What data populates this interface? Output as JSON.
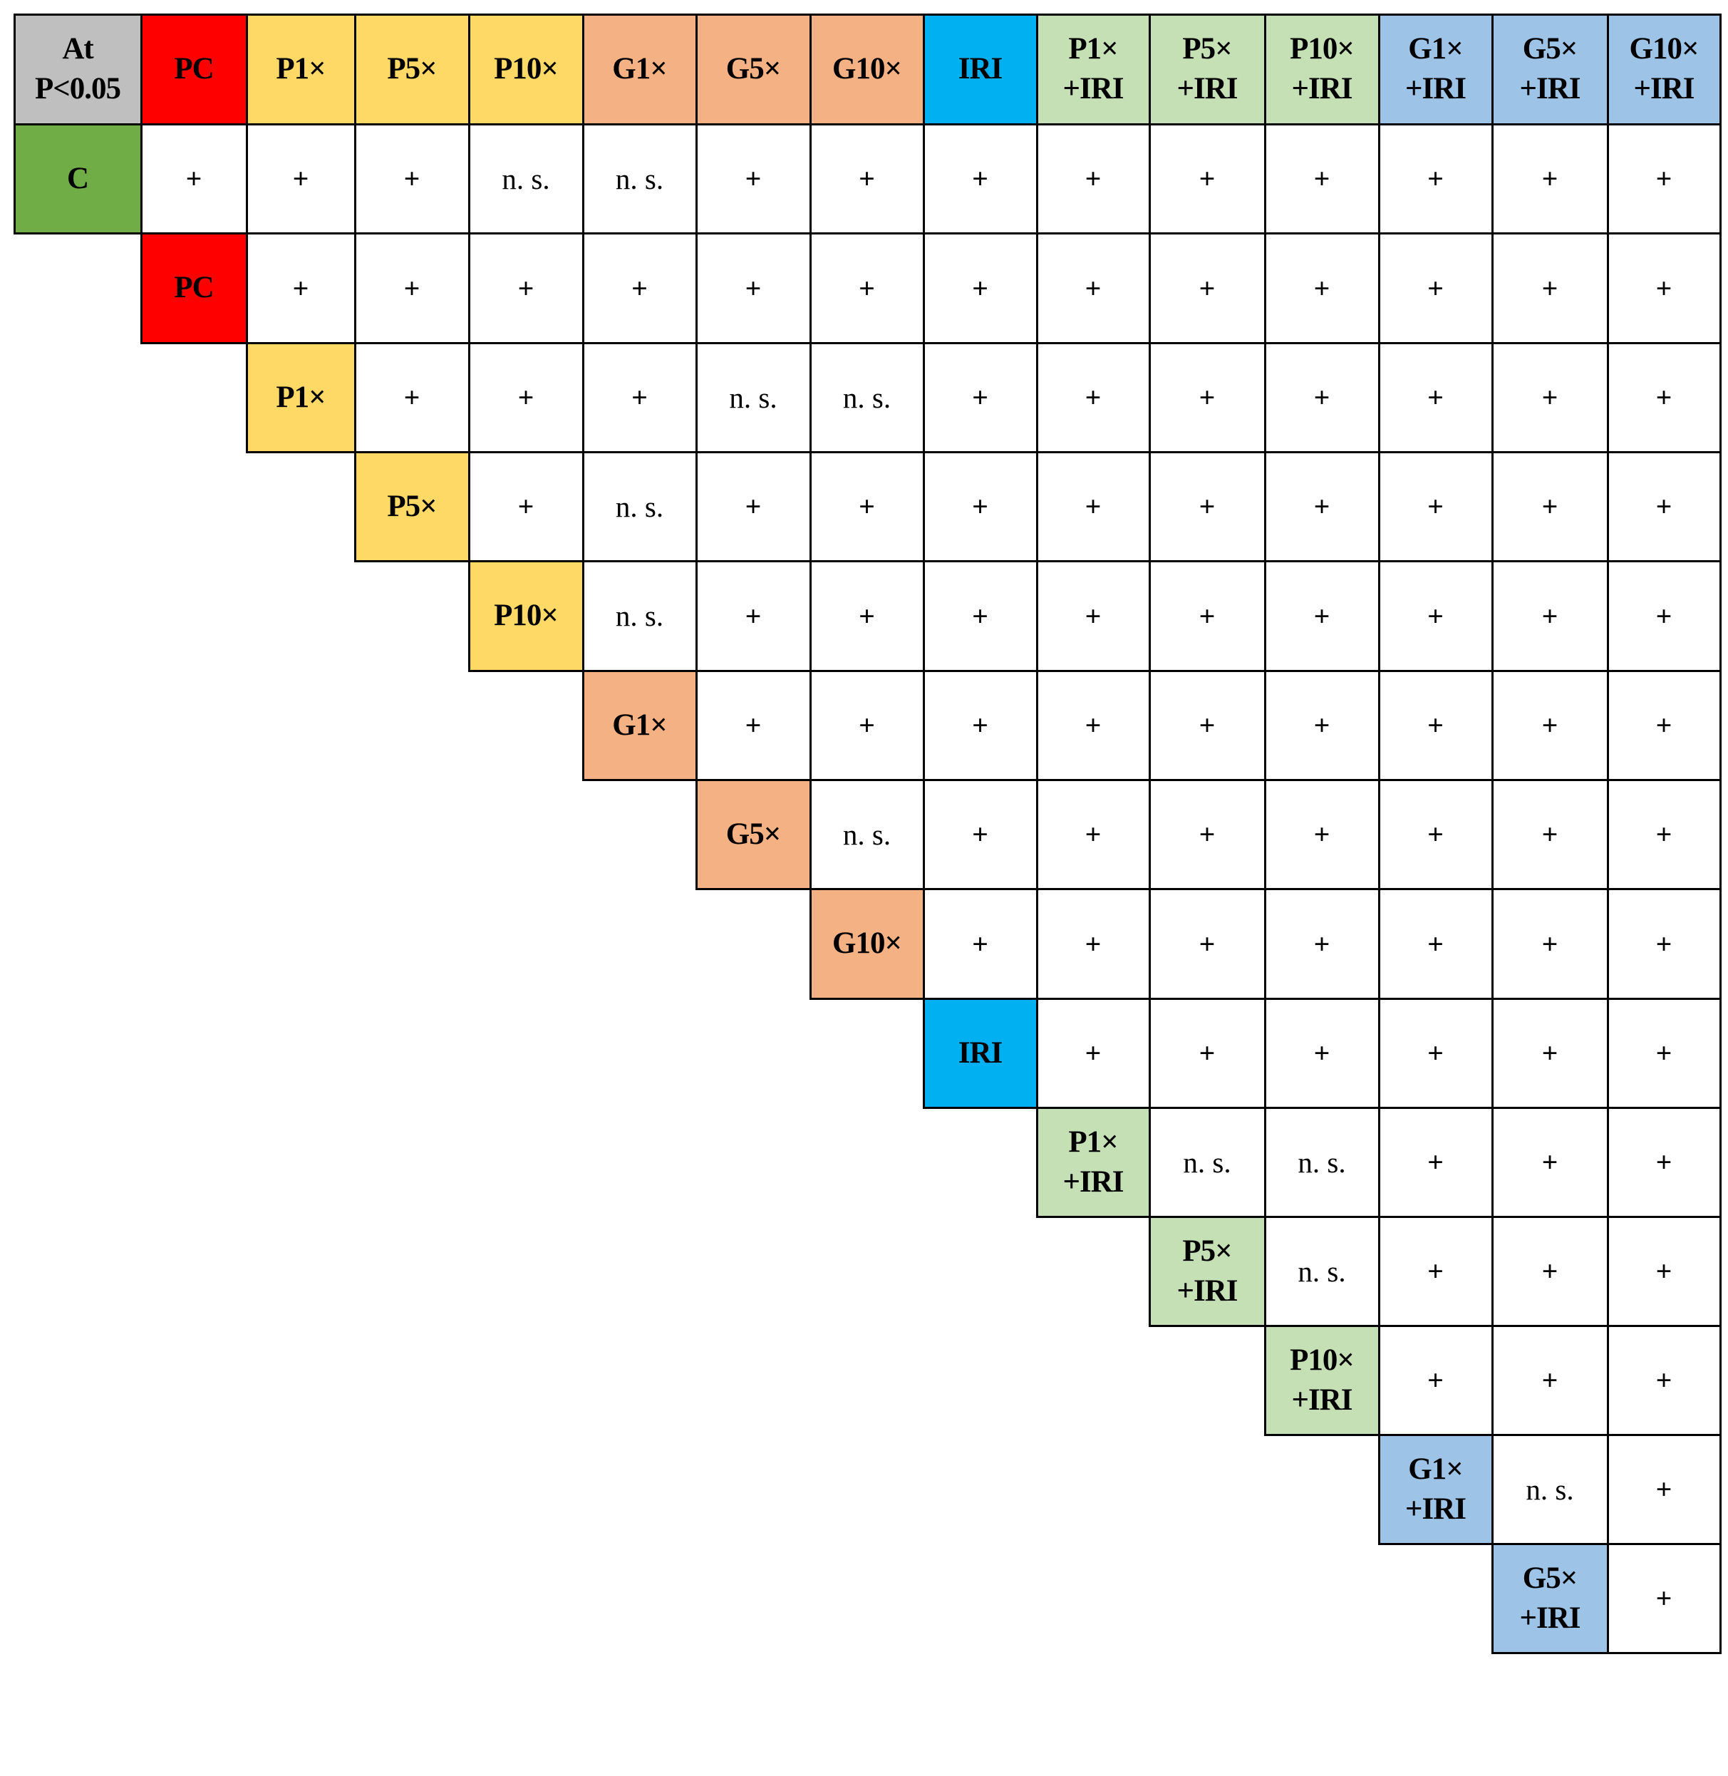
{
  "corner": {
    "line1": "At",
    "line2": "P<0.05"
  },
  "row_header_first": {
    "label": "C",
    "color": "#70ad47"
  },
  "groups": [
    {
      "line1": "PC",
      "line2": "",
      "color": "#ff0000"
    },
    {
      "line1": "P1×",
      "line2": "",
      "color": "#ffd966"
    },
    {
      "line1": "P5×",
      "line2": "",
      "color": "#ffd966"
    },
    {
      "line1": "P10×",
      "line2": "",
      "color": "#ffd966"
    },
    {
      "line1": "G1×",
      "line2": "",
      "color": "#f4b183"
    },
    {
      "line1": "G5×",
      "line2": "",
      "color": "#f4b183"
    },
    {
      "line1": "G10×",
      "line2": "",
      "color": "#f4b183"
    },
    {
      "line1": "IRI",
      "line2": "",
      "color": "#00b0f0"
    },
    {
      "line1": "P1×",
      "line2": "+IRI",
      "color": "#c5e0b4"
    },
    {
      "line1": "P5×",
      "line2": "+IRI",
      "color": "#c5e0b4"
    },
    {
      "line1": "P10×",
      "line2": "+IRI",
      "color": "#c5e0b4"
    },
    {
      "line1": "G1×",
      "line2": "+IRI",
      "color": "#9dc3e6"
    },
    {
      "line1": "G5×",
      "line2": "+IRI",
      "color": "#9dc3e6"
    },
    {
      "line1": "G10×",
      "line2": "+IRI",
      "color": "#9dc3e6"
    }
  ],
  "corner_color": "#bfbfbf",
  "rows": [
    [
      "+",
      "+",
      "+",
      "n. s.",
      "n. s.",
      "+",
      "+",
      "+",
      "+",
      "+",
      "+",
      "+",
      "+",
      "+"
    ],
    [
      "+",
      "+",
      "+",
      "+",
      "+",
      "+",
      "+",
      "+",
      "+",
      "+",
      "+",
      "+",
      "+"
    ],
    [
      "+",
      "+",
      "+",
      "n. s.",
      "n. s.",
      "+",
      "+",
      "+",
      "+",
      "+",
      "+",
      "+"
    ],
    [
      "+",
      "n. s.",
      "+",
      "+",
      "+",
      "+",
      "+",
      "+",
      "+",
      "+",
      "+"
    ],
    [
      "n. s.",
      "+",
      "+",
      "+",
      "+",
      "+",
      "+",
      "+",
      "+",
      "+"
    ],
    [
      "+",
      "+",
      "+",
      "+",
      "+",
      "+",
      "+",
      "+",
      "+"
    ],
    [
      "n. s.",
      "+",
      "+",
      "+",
      "+",
      "+",
      "+",
      "+"
    ],
    [
      "+",
      "+",
      "+",
      "+",
      "+",
      "+",
      "+"
    ],
    [
      "+",
      "+",
      "+",
      "+",
      "+",
      "+"
    ],
    [
      "n. s.",
      "n. s.",
      "+",
      "+",
      "+"
    ],
    [
      "n. s.",
      "+",
      "+",
      "+"
    ],
    [
      "+",
      "+",
      "+"
    ],
    [
      "n. s.",
      "+"
    ],
    [
      "+"
    ]
  ]
}
